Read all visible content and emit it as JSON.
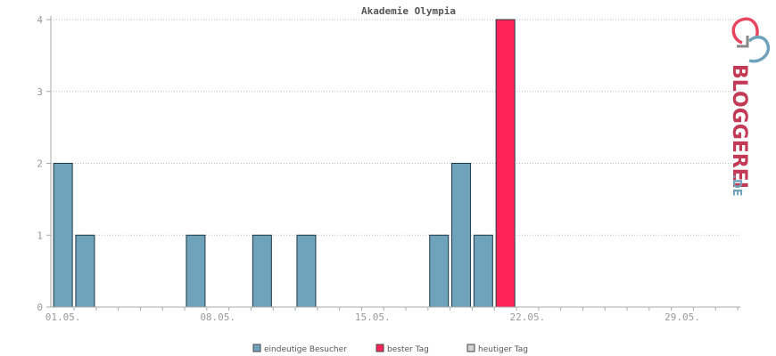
{
  "chart_data": {
    "type": "bar",
    "title": "Akademie Olympia",
    "xlabel": "",
    "ylabel": "",
    "ylim": [
      0,
      4
    ],
    "yticks": [
      0,
      1,
      2,
      3,
      4
    ],
    "grid": true,
    "legend_position": "bottom-center",
    "x_tick_labels": [
      "01.05.",
      "08.05.",
      "15.05.",
      "22.05.",
      "29.05."
    ],
    "x_tick_days": [
      1,
      8,
      15,
      22,
      29
    ],
    "days": [
      1,
      2,
      3,
      4,
      5,
      6,
      7,
      8,
      9,
      10,
      11,
      12,
      13,
      14,
      15,
      16,
      17,
      18,
      19,
      20,
      21,
      22,
      23,
      24,
      25,
      26,
      27,
      28,
      29,
      30,
      31
    ],
    "series": [
      {
        "name": "eindeutige Besucher",
        "color": "#6fa3bb",
        "values": [
          2,
          1,
          0,
          0,
          0,
          0,
          1,
          0,
          0,
          1,
          0,
          1,
          0,
          0,
          0,
          0,
          0,
          1,
          2,
          1,
          0,
          0,
          0,
          0,
          0,
          0,
          0,
          0,
          0,
          0,
          0
        ]
      },
      {
        "name": "bester Tag",
        "color": "#ff2457",
        "values": [
          0,
          0,
          0,
          0,
          0,
          0,
          0,
          0,
          0,
          0,
          0,
          0,
          0,
          0,
          0,
          0,
          0,
          0,
          0,
          0,
          4,
          0,
          0,
          0,
          0,
          0,
          0,
          0,
          0,
          0,
          0
        ]
      },
      {
        "name": "heutiger Tag",
        "color": "#d0d0d0",
        "values": [
          0,
          0,
          0,
          0,
          0,
          0,
          0,
          0,
          0,
          0,
          0,
          0,
          0,
          0,
          0,
          0,
          0,
          0,
          0,
          0,
          0,
          0,
          0,
          0,
          0,
          0,
          0,
          0,
          0,
          0,
          0
        ]
      }
    ]
  },
  "watermark": {
    "brand": "BLOGGEREI",
    "suffix": ".DE"
  }
}
